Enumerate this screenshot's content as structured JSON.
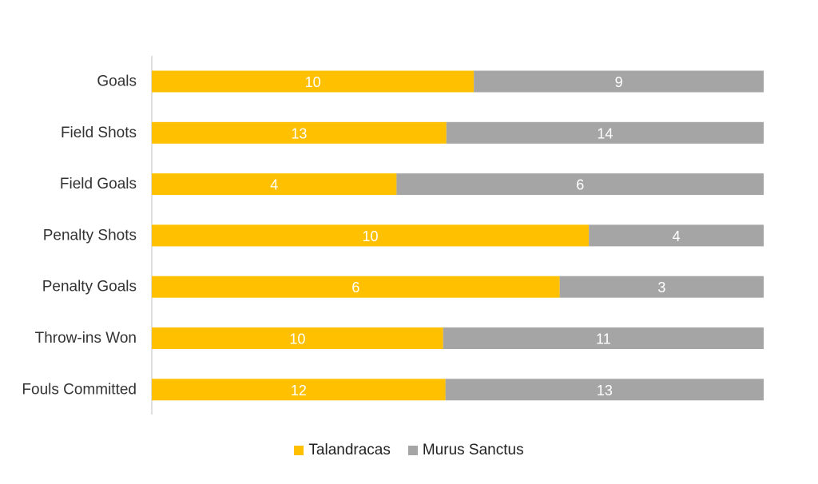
{
  "colors": {
    "talandracas": "#FFC000",
    "murus_sanctus": "#A5A5A5",
    "axis": "#BFBFBF",
    "label": "#333333",
    "data_label": "#FFFFFF"
  },
  "chart_data": {
    "type": "bar",
    "orientation": "horizontal",
    "stacked": "100%",
    "categories": [
      "Goals",
      "Field Shots",
      "Field Goals",
      "Penalty Shots",
      "Penalty Goals",
      "Throw-ins Won",
      "Fouls Committed"
    ],
    "series": [
      {
        "name": "Talandracas",
        "values": [
          10,
          13,
          4,
          10,
          6,
          10,
          12
        ]
      },
      {
        "name": "Murus Sanctus",
        "values": [
          9,
          14,
          6,
          4,
          3,
          11,
          13
        ]
      }
    ],
    "xlabel": "",
    "ylabel": "",
    "grid": false,
    "legend": "bottom-center"
  }
}
